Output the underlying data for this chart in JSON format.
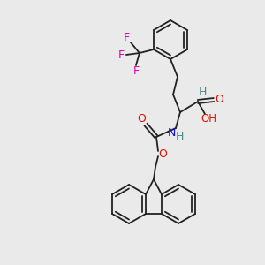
{
  "bg_color": "#eaeaea",
  "bond_color": "#222222",
  "F_color": "#dd00aa",
  "O_color": "#dd1100",
  "N_color": "#1111cc",
  "H_color": "#448888",
  "lw": 1.3,
  "dbl_off": 2.0,
  "figsize": [
    3.0,
    3.0
  ],
  "dpi": 100,
  "xlim": [
    0,
    300
  ],
  "ylim": [
    0,
    300
  ]
}
